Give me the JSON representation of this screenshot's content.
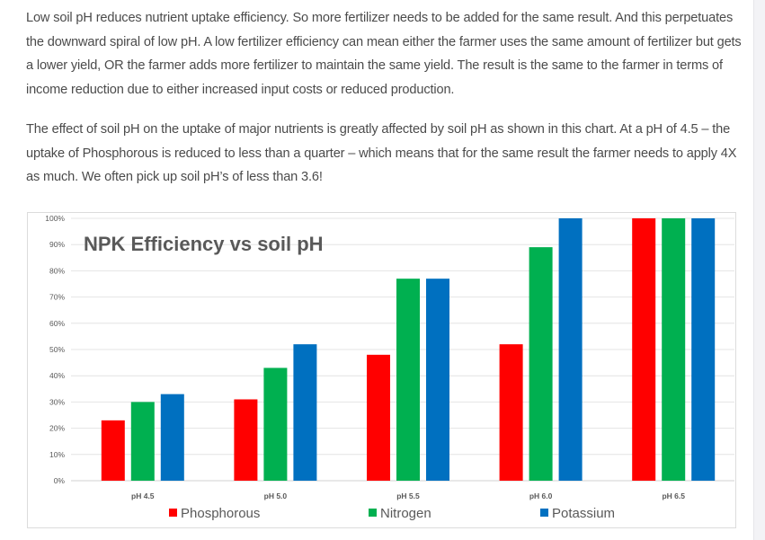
{
  "article": {
    "paragraph1": "Low soil pH reduces nutrient uptake efficiency. So more fertilizer needs to be added for the same result. And this perpetuates the downward spiral of low pH.  A low fertilizer efficiency can mean either the farmer uses the same amount of fertilizer but gets a lower yield, OR the farmer adds more fertilizer to maintain the same yield. The result is the same to the farmer in terms of income reduction due to either increased input costs or reduced production.",
    "paragraph2": "The effect of soil pH on the uptake of major nutrients is greatly affected by soil pH as shown in this chart. At a pH of 4.5 – the uptake of Phosphorous is reduced to less than a quarter – which means that for the same result the farmer needs to apply 4X as much.  We often pick up soil pH’s of less than 3.6!"
  },
  "chart_data": {
    "type": "bar",
    "title": "NPK Efficiency vs soil pH",
    "xlabel": "",
    "ylabel": "",
    "categories": [
      "pH 4.5",
      "pH 5.0",
      "pH 5.5",
      "pH 6.0",
      "pH 6.5"
    ],
    "series": [
      {
        "name": "Phosphorous",
        "color": "#ff0000",
        "values": [
          23,
          31,
          48,
          52,
          100
        ]
      },
      {
        "name": "Nitrogen",
        "color": "#00b050",
        "values": [
          30,
          43,
          77,
          89,
          100
        ]
      },
      {
        "name": "Potassium",
        "color": "#0070c0",
        "values": [
          33,
          52,
          77,
          100,
          100
        ]
      }
    ],
    "ylim": [
      0,
      100
    ],
    "yticks": [
      0,
      10,
      20,
      30,
      40,
      50,
      60,
      70,
      80,
      90,
      100
    ],
    "ytick_labels": [
      "0%",
      "10%",
      "20%",
      "30%",
      "40%",
      "50%",
      "60%",
      "70%",
      "80%",
      "90%",
      "100%"
    ],
    "grid": true,
    "legend_position": "bottom"
  }
}
